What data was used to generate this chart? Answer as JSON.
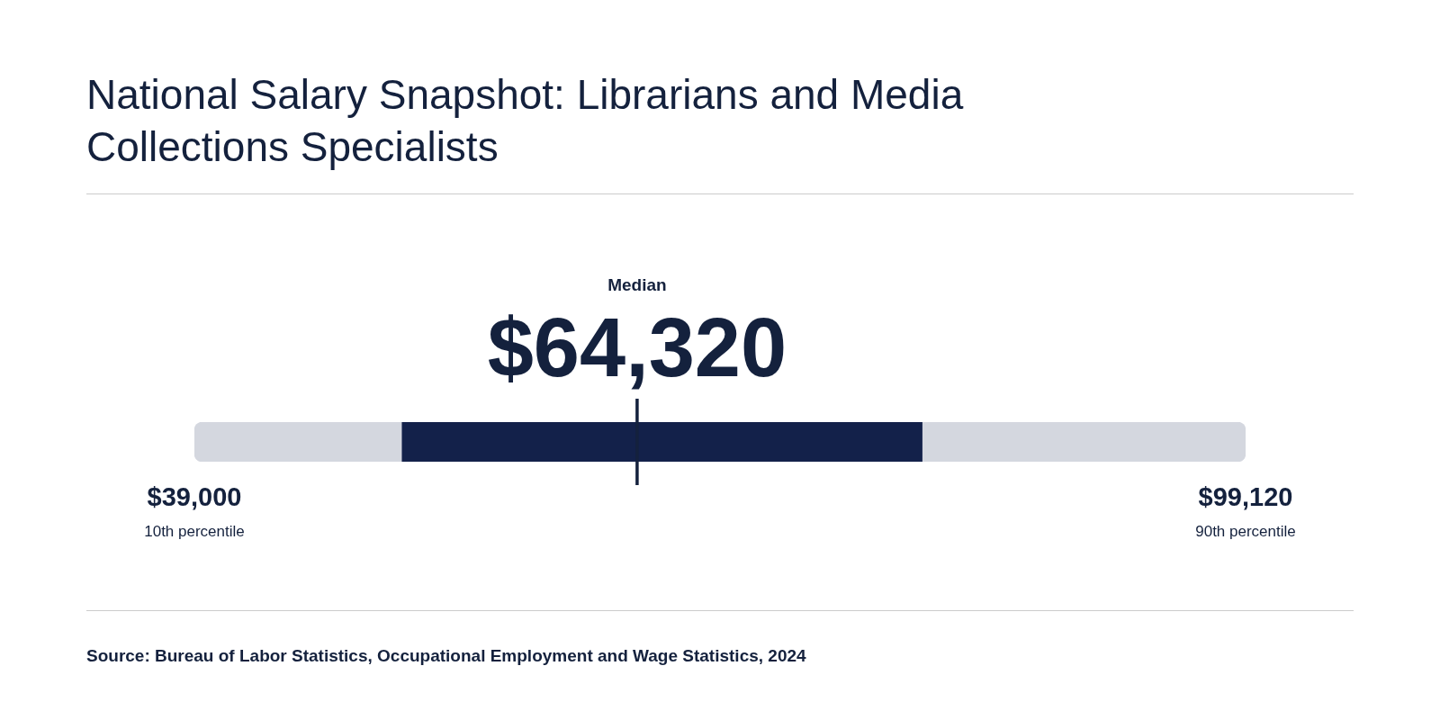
{
  "chart_data": {
    "type": "bar",
    "orientation": "horizontal",
    "title": "National Salary Snapshot: Librarians and Media Collections Specialists",
    "categories": [
      null
    ],
    "series": [
      {
        "color": "#d4d7df",
        "values": [
          60120
        ],
        "base": [
          39000
        ]
      },
      {
        "color": "#13214a",
        "values": [
          29740
        ],
        "base": [
          50880
        ]
      }
    ],
    "xlim": [
      39000,
      99120
    ],
    "xticks": [
      {
        "value": 39000,
        "label": "$39,000"
      },
      {
        "value": 99120,
        "label": "$99,120"
      }
    ],
    "tick_labels": "x",
    "ref_lines": [
      {
        "axis": "x",
        "value": 64320,
        "label": "Median",
        "color": "#14213d"
      }
    ],
    "annotations": [
      "$64,320",
      "10th percentile",
      "90th percentile",
      "Source: Bureau of Labor Statistics, Occupational Employment and Wage Statistics, 2024"
    ]
  }
}
